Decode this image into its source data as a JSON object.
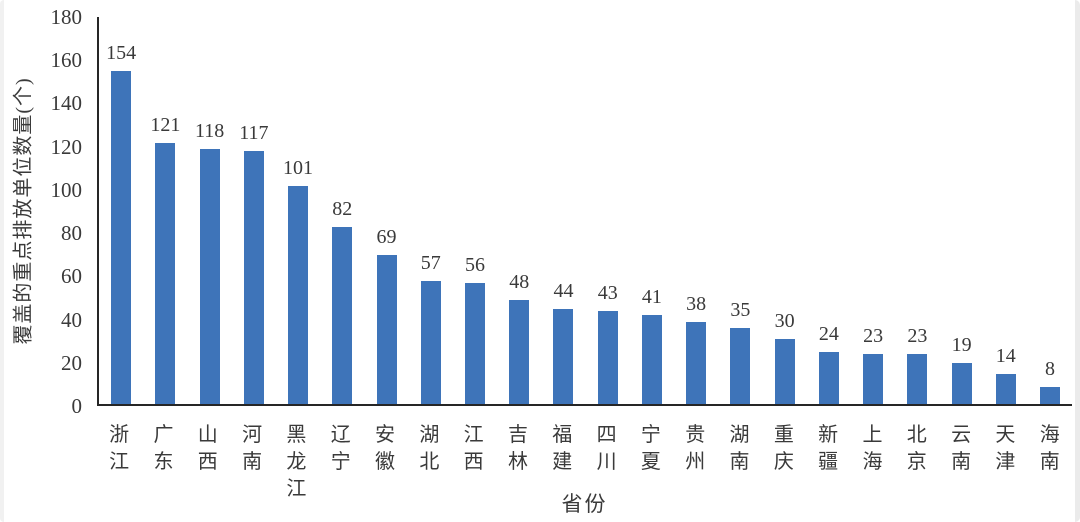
{
  "chart_data": {
    "type": "bar",
    "title": "",
    "categories": [
      "浙江",
      "广东",
      "山西",
      "河南",
      "黑龙江",
      "辽宁",
      "安徽",
      "湖北",
      "江西",
      "吉林",
      "福建",
      "四川",
      "宁夏",
      "贵州",
      "湖南",
      "重庆",
      "新疆",
      "上海",
      "北京",
      "云南",
      "天津",
      "海南"
    ],
    "values": [
      154,
      121,
      118,
      117,
      101,
      82,
      69,
      57,
      56,
      48,
      44,
      43,
      41,
      38,
      35,
      30,
      24,
      23,
      23,
      19,
      14,
      8
    ],
    "xlabel": "省份",
    "ylabel": "覆盖的重点排放单位数量(个)",
    "ylim": [
      0,
      180
    ],
    "yticks": [
      0,
      20,
      40,
      60,
      80,
      100,
      120,
      140,
      160,
      180
    ],
    "grid": false,
    "legend": null,
    "data_labels": true,
    "bar_color": "#3E74B9",
    "axis_color": "#262626",
    "text_color": "#3a3a3a"
  }
}
